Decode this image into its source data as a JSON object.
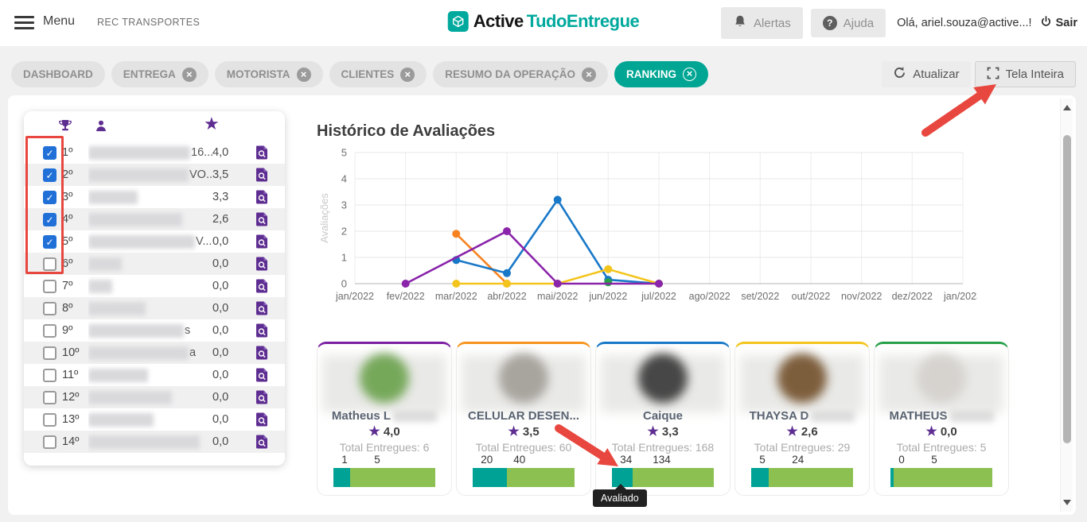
{
  "header": {
    "menu_label": "Menu",
    "company": "REC TRANSPORTES",
    "brand": "Active",
    "product": "TudoEntregue",
    "alerts_label": "Alertas",
    "help_label": "Ajuda",
    "greeting": "Olá, ariel.souza@active...!",
    "logout_label": "Sair"
  },
  "tabs": [
    {
      "label": "DASHBOARD",
      "closable": false,
      "active": false
    },
    {
      "label": "ENTREGA",
      "closable": true,
      "active": false
    },
    {
      "label": "MOTORISTA",
      "closable": true,
      "active": false
    },
    {
      "label": "CLIENTES",
      "closable": true,
      "active": false
    },
    {
      "label": "RESUMO DA OPERAÇÃO",
      "closable": true,
      "active": false
    },
    {
      "label": "RANKING",
      "closable": true,
      "active": true
    }
  ],
  "toolbar": {
    "refresh_label": "Atualizar",
    "fullscreen_label": "Tela Inteira"
  },
  "ranking_table": {
    "header_icons": [
      "trophy-icon",
      "driver-icon",
      "star-icon"
    ],
    "rows": [
      {
        "rank": "1º",
        "checked": true,
        "name_fragment": "16...",
        "rating": "4,0",
        "blur_w": 128
      },
      {
        "rank": "2º",
        "checked": true,
        "name_fragment": "VO...",
        "rating": "3,5",
        "blur_w": 126
      },
      {
        "rank": "3º",
        "checked": true,
        "name_fragment": "",
        "rating": "3,3",
        "blur_w": 62
      },
      {
        "rank": "4º",
        "checked": true,
        "name_fragment": "",
        "rating": "2,6",
        "blur_w": 118
      },
      {
        "rank": "5º",
        "checked": true,
        "name_fragment": "V...",
        "rating": "0,0",
        "blur_w": 134
      },
      {
        "rank": "6º",
        "checked": false,
        "name_fragment": "",
        "rating": "0,0",
        "blur_w": 42
      },
      {
        "rank": "7º",
        "checked": false,
        "name_fragment": "",
        "rating": "0,0",
        "blur_w": 30
      },
      {
        "rank": "8º",
        "checked": false,
        "name_fragment": "",
        "rating": "0,0",
        "blur_w": 72
      },
      {
        "rank": "9º",
        "checked": false,
        "name_fragment": "s",
        "rating": "0,0",
        "blur_w": 120
      },
      {
        "rank": "10º",
        "checked": false,
        "name_fragment": "a",
        "rating": "0,0",
        "blur_w": 126
      },
      {
        "rank": "11º",
        "checked": false,
        "name_fragment": "",
        "rating": "0,0",
        "blur_w": 75
      },
      {
        "rank": "12º",
        "checked": false,
        "name_fragment": "",
        "rating": "0,0",
        "blur_w": 105
      },
      {
        "rank": "13º",
        "checked": false,
        "name_fragment": "",
        "rating": "0,0",
        "blur_w": 82
      },
      {
        "rank": "14º",
        "checked": false,
        "name_fragment": "",
        "rating": "0,0",
        "blur_w": 140
      }
    ]
  },
  "chart_data": {
    "type": "line",
    "title": "Histórico de Avaliações",
    "ylabel": "Avaliações",
    "ylim": [
      0,
      5
    ],
    "yticks": [
      0,
      1,
      2,
      3,
      4,
      5
    ],
    "grid": true,
    "x_labels": [
      "jan/2022",
      "fev/2022",
      "mar/2022",
      "abr/2022",
      "mai/2022",
      "jun/2022",
      "jul/2022",
      "ago/2022",
      "set/2022",
      "out/2022",
      "nov/2022",
      "dez/2022",
      "jan/2023"
    ],
    "series": [
      {
        "name": "Matheus L",
        "color": "#8a24aa",
        "points": [
          [
            "fev/2022",
            0
          ],
          [
            "abr/2022",
            2
          ],
          [
            "mai/2022",
            0
          ],
          [
            "jul/2022",
            0
          ]
        ]
      },
      {
        "name": "CELULAR DESEN...",
        "color": "#f78320",
        "points": [
          [
            "mar/2022",
            1.9
          ],
          [
            "abr/2022",
            0
          ]
        ]
      },
      {
        "name": "Caique",
        "color": "#1878c8",
        "points": [
          [
            "mar/2022",
            0.9
          ],
          [
            "abr/2022",
            0.4
          ],
          [
            "mai/2022",
            3.2
          ],
          [
            "jun/2022",
            0.15
          ],
          [
            "jul/2022",
            0
          ]
        ]
      },
      {
        "name": "THAYSA D",
        "color": "#f3c51c",
        "points": [
          [
            "mar/2022",
            0
          ],
          [
            "abr/2022",
            0
          ],
          [
            "mai/2022",
            0
          ],
          [
            "jun/2022",
            0.55
          ],
          [
            "jul/2022",
            0
          ]
        ]
      },
      {
        "name": "MATHEUS",
        "color": "#27a048",
        "points": [
          [
            "jun/2022",
            0.05
          ]
        ]
      }
    ]
  },
  "driver_cards": [
    {
      "name": "Matheus L",
      "name_blurred": true,
      "rating": "4,0",
      "total_label": "Total Entregues: 6",
      "evaluated": 1,
      "remaining": 5,
      "accent": "#7b1fa2",
      "avatar_color": "#76a85a"
    },
    {
      "name": "CELULAR DESEN...",
      "name_blurred": false,
      "rating": "3,5",
      "total_label": "Total Entregues: 60",
      "evaluated": 20,
      "remaining": 40,
      "accent": "#f7941d",
      "avatar_color": "#a8a49e"
    },
    {
      "name": "Caique",
      "name_blurred": false,
      "rating": "3,3",
      "total_label": "Total Entregues: 168",
      "evaluated": 34,
      "remaining": 134,
      "accent": "#1878c8",
      "avatar_color": "#474747"
    },
    {
      "name": "THAYSA D",
      "name_blurred": true,
      "rating": "2,6",
      "total_label": "Total Entregues: 29",
      "evaluated": 5,
      "remaining": 24,
      "accent": "#f3c51c",
      "avatar_color": "#7d5e3c"
    },
    {
      "name": "MATHEUS",
      "name_blurred": true,
      "rating": "0,0",
      "total_label": "Total Entregues: 5",
      "evaluated": 0,
      "remaining": 5,
      "accent": "#27a048",
      "avatar_color": "#d6d3cf"
    }
  ],
  "tooltip": {
    "label": "Avaliado"
  },
  "colors": {
    "brand_teal": "#00a693",
    "progress_evaluated": "#00a295",
    "progress_remaining": "#8cc152",
    "annotation_red": "#e8473f",
    "purple_icon": "#5e2d91",
    "checkbox_blue": "#2170d8"
  }
}
